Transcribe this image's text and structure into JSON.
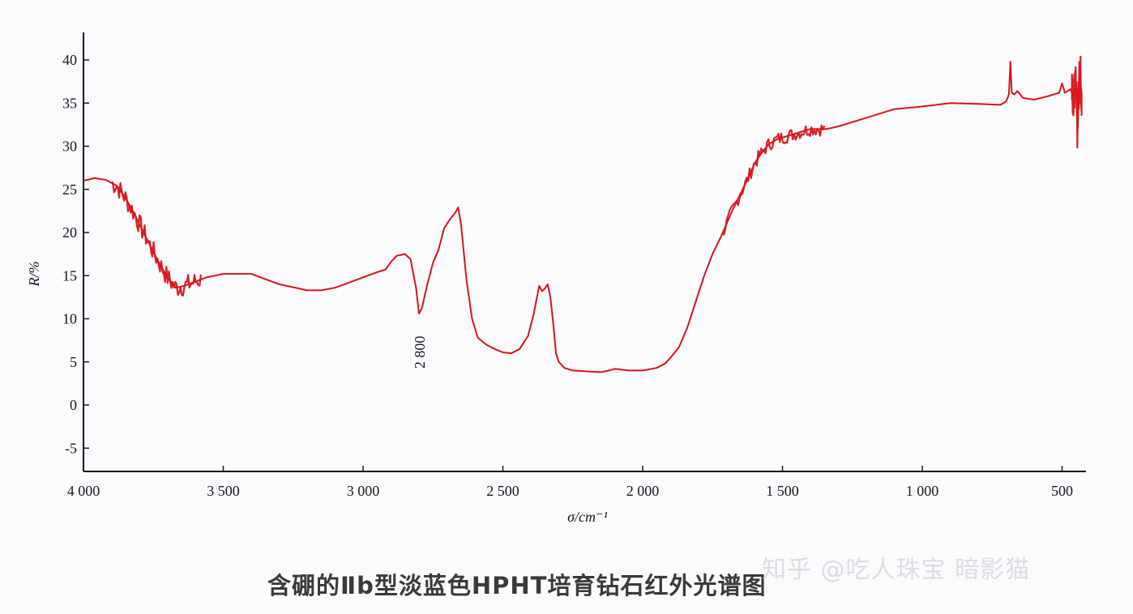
{
  "chart_data": {
    "type": "line",
    "title": "含硼的Ⅱb型淡蓝色HPHT培育钻石红外光谱图",
    "xlabel": "σ/cm⁻¹",
    "ylabel": "R/%",
    "xlim": [
      4000,
      420
    ],
    "x_reversed": true,
    "ylim": [
      -7.7,
      40
    ],
    "x_ticks": [
      4000,
      3500,
      3000,
      2500,
      2000,
      1500,
      1000,
      500
    ],
    "x_tick_labels": [
      "4 000",
      "3 500",
      "3 000",
      "2 500",
      "2 000",
      "1 500",
      "1 000",
      "500"
    ],
    "y_ticks": [
      40,
      35,
      30,
      25,
      20,
      15,
      10,
      5,
      0,
      -5
    ],
    "y_tick_labels": [
      "40",
      "35",
      "30",
      "25",
      "20",
      "15",
      "10",
      "5",
      "0",
      "-5"
    ],
    "grid": false,
    "legend": null,
    "line_color": "#d8141c",
    "annotations": [
      {
        "text": "2 800",
        "x": 2800,
        "y": 10.6,
        "rotation": -90,
        "position": "below"
      }
    ],
    "series": [
      {
        "name": "reflectance",
        "x": [
          4000,
          3960,
          3920,
          3880,
          3850,
          3820,
          3790,
          3760,
          3730,
          3700,
          3670,
          3640,
          3600,
          3560,
          3500,
          3400,
          3300,
          3200,
          3150,
          3100,
          3050,
          3000,
          2950,
          2920,
          2900,
          2880,
          2850,
          2830,
          2810,
          2800,
          2790,
          2770,
          2750,
          2730,
          2710,
          2690,
          2670,
          2660,
          2650,
          2630,
          2610,
          2590,
          2560,
          2530,
          2500,
          2470,
          2440,
          2410,
          2390,
          2370,
          2360,
          2350,
          2340,
          2330,
          2320,
          2310,
          2300,
          2280,
          2250,
          2200,
          2150,
          2120,
          2100,
          2050,
          2000,
          1950,
          1920,
          1900,
          1870,
          1840,
          1810,
          1780,
          1750,
          1720,
          1700,
          1680,
          1650,
          1620,
          1600,
          1580,
          1550,
          1520,
          1500,
          1450,
          1400,
          1340,
          1300,
          1200,
          1100,
          1000,
          900,
          800,
          720,
          700,
          690,
          685,
          680,
          670,
          660,
          640,
          600,
          550,
          510,
          500,
          490,
          470,
          460,
          450,
          445,
          440,
          435,
          430
        ],
        "y": [
          26.0,
          26.3,
          26.1,
          25.4,
          24.0,
          22.3,
          20.3,
          18.4,
          16.5,
          14.8,
          13.6,
          13.8,
          14.3,
          14.8,
          15.2,
          15.2,
          14.0,
          13.3,
          13.3,
          13.6,
          14.2,
          14.8,
          15.4,
          15.7,
          16.6,
          17.3,
          17.5,
          16.9,
          13.5,
          10.6,
          11.2,
          14.0,
          16.5,
          18.0,
          20.5,
          21.5,
          22.3,
          22.9,
          21.0,
          14.5,
          10.0,
          7.8,
          7.0,
          6.5,
          6.1,
          6.0,
          6.5,
          8.0,
          10.5,
          13.8,
          13.2,
          13.5,
          14.0,
          12.5,
          9.5,
          6.0,
          5.0,
          4.3,
          4.0,
          3.9,
          3.8,
          4.0,
          4.2,
          4.0,
          4.0,
          4.3,
          4.8,
          5.5,
          6.7,
          9.0,
          12.0,
          15.0,
          17.5,
          19.5,
          21.0,
          22.5,
          24.5,
          26.5,
          28.0,
          29.0,
          30.2,
          30.8,
          31.0,
          31.5,
          32.0,
          32.0,
          32.3,
          33.3,
          34.3,
          34.6,
          35.0,
          34.9,
          34.8,
          35.2,
          36.0,
          39.8,
          36.2,
          36.0,
          36.4,
          35.6,
          35.4,
          35.8,
          36.2,
          37.3,
          36.2,
          36.6,
          35.8,
          37.0,
          31.4,
          36.6,
          39.0,
          34.5
        ]
      }
    ],
    "noise_regions": [
      {
        "x_from": 3900,
        "x_to": 3580,
        "amplitude": 1.2
      },
      {
        "x_from": 1710,
        "x_to": 1350,
        "amplitude": 0.8
      },
      {
        "x_from": 465,
        "x_to": 430,
        "amplitude": 2.5
      }
    ]
  },
  "caption": "含硼的Ⅱb型淡蓝色HPHT培育钻石红外光谱图",
  "watermark": "知乎 @吃人珠宝 暗影猫"
}
